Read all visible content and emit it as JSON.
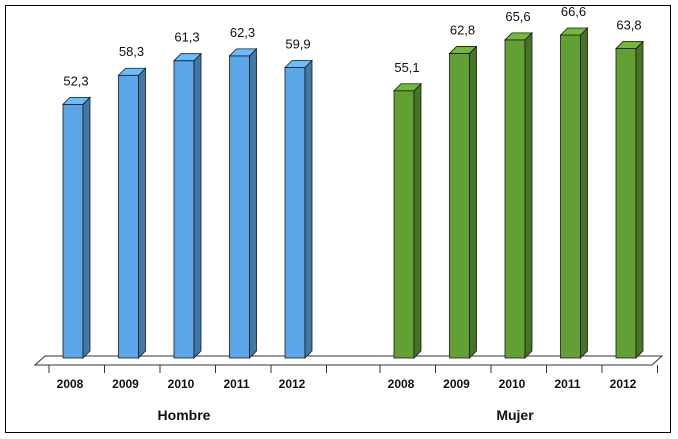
{
  "chart_data": {
    "type": "bar",
    "categories": [
      "2008",
      "2009",
      "2010",
      "2011",
      "2012"
    ],
    "groups": [
      {
        "label": "Hombre",
        "color": "#5aa6e8",
        "values": [
          52.3,
          58.3,
          61.3,
          62.3,
          59.9
        ],
        "value_labels": [
          "52,3",
          "58,3",
          "61,3",
          "62,3",
          "59,9"
        ]
      },
      {
        "label": "Mujer",
        "color": "#62a033",
        "values": [
          55.1,
          62.8,
          65.6,
          66.6,
          63.8
        ],
        "value_labels": [
          "55,1",
          "62,8",
          "65,6",
          "66,6",
          "63,8"
        ]
      }
    ],
    "title": "",
    "xlabel": "",
    "ylabel": "",
    "ylim": [
      0,
      75
    ],
    "grid": false,
    "legend": "none"
  }
}
